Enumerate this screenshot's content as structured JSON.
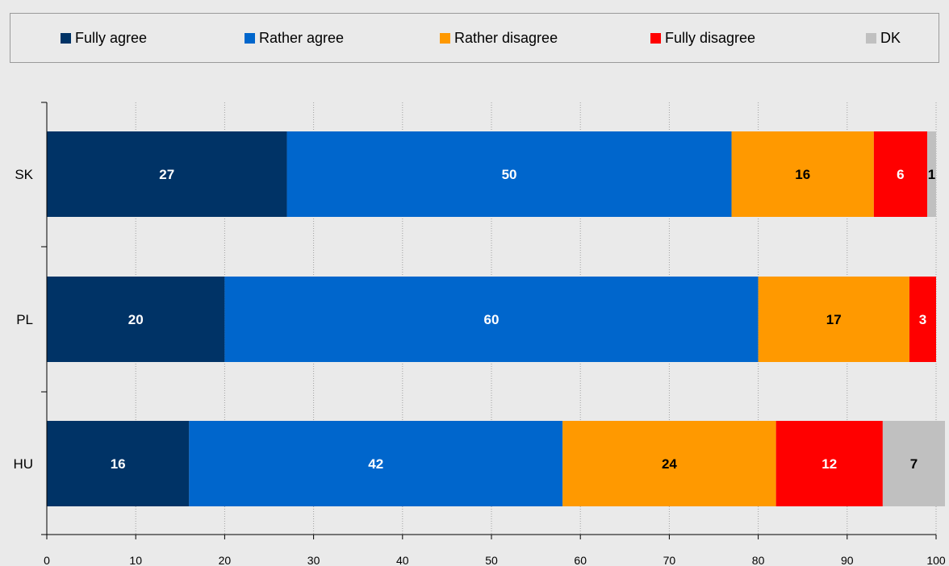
{
  "chart_data": {
    "type": "bar",
    "orientation": "horizontal",
    "stacked": true,
    "categories": [
      "SK",
      "PL",
      "HU"
    ],
    "series": [
      {
        "name": "Fully agree",
        "color": "#003366",
        "label_color": "#ffffff",
        "values": [
          27,
          20,
          16
        ]
      },
      {
        "name": "Rather agree",
        "color": "#0066cc",
        "label_color": "#ffffff",
        "values": [
          50,
          60,
          42
        ]
      },
      {
        "name": "Rather disagree",
        "color": "#ff9900",
        "label_color": "#000000",
        "values": [
          16,
          17,
          24
        ]
      },
      {
        "name": "Fully disagree",
        "color": "#ff0000",
        "label_color": "#ffffff",
        "values": [
          6,
          3,
          12
        ]
      },
      {
        "name": "DK",
        "color": "#c0c0c0",
        "label_color": "#000000",
        "values": [
          1,
          0,
          7
        ]
      }
    ],
    "xlim": [
      0,
      100
    ],
    "xticks": [
      "0",
      "10",
      "20",
      "30",
      "40",
      "50",
      "60",
      "70",
      "80",
      "90",
      "100"
    ],
    "grid": "vertical-dotted",
    "legend_position": "top",
    "title": "",
    "xlabel": "",
    "ylabel": ""
  }
}
